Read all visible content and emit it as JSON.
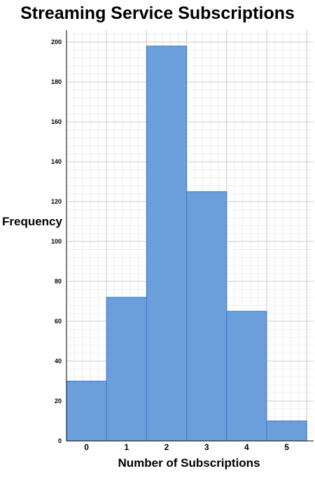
{
  "chart_data": {
    "type": "bar",
    "title": "Streaming Service Subscriptions",
    "xlabel": "Number of Subscriptions",
    "ylabel": "Frequency",
    "categories": [
      "0",
      "1",
      "2",
      "3",
      "4",
      "5"
    ],
    "values": [
      30,
      72,
      198,
      125,
      65,
      10
    ],
    "ylim": [
      0,
      206
    ],
    "yticks": [
      0,
      20,
      40,
      60,
      80,
      100,
      120,
      140,
      160,
      180,
      200
    ],
    "grid": true,
    "legend": "none",
    "colors": {
      "bar_fill": "#6a9fdc",
      "bar_stroke": "#3a78c9",
      "grid_major": "#cccccc",
      "grid_minor": "#eeeeee"
    }
  }
}
